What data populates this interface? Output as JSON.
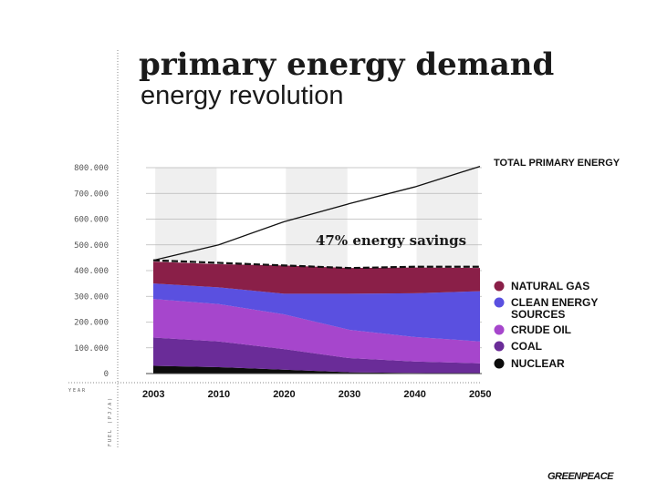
{
  "title": "primary energy demand",
  "subtitle": "energy revolution",
  "brand": "GREENPEACE",
  "axis_captions": {
    "x": "YEAR",
    "y": "FUEL (PJ/A)"
  },
  "colors": {
    "nuclear": "#0c0c0c",
    "coal": "#6a2c98",
    "crude_oil": "#a646cc",
    "clean": "#5a50e0",
    "natural_gas": "#8a1f48",
    "band": "#efefef",
    "grid": "#b8b8b8"
  },
  "chart_data": {
    "type": "area",
    "title": "primary energy demand",
    "subtitle": "energy revolution",
    "x": [
      "2003",
      "2010",
      "2020",
      "2030",
      "2040",
      "2050"
    ],
    "xlabel": "YEAR",
    "ylabel": "FUEL (PJ/A)",
    "ylim": [
      0,
      800000
    ],
    "yticks": [
      "0",
      "100.000",
      "200.000",
      "300.000",
      "400.000",
      "500.000",
      "600.000",
      "700.000",
      "800.000"
    ],
    "grid": true,
    "stacked": true,
    "series": [
      {
        "key": "nuclear",
        "name": "NUCLEAR",
        "values": [
          30000,
          25000,
          15000,
          5000,
          2000,
          0
        ]
      },
      {
        "key": "coal",
        "name": "COAL",
        "values": [
          110000,
          100000,
          80000,
          55000,
          45000,
          40000
        ]
      },
      {
        "key": "crude_oil",
        "name": "CRUDE OIL",
        "values": [
          150000,
          145000,
          135000,
          110000,
          95000,
          85000
        ]
      },
      {
        "key": "clean",
        "name": "CLEAN ENERGY SOURCES",
        "values": [
          60000,
          65000,
          80000,
          140000,
          170000,
          195000
        ]
      },
      {
        "key": "natural_gas",
        "name": "NATURAL GAS",
        "values": [
          85000,
          90000,
          110000,
          100000,
          100000,
          90000
        ]
      }
    ],
    "reference_series": {
      "name": "TOTAL PRIMARY ENERGY",
      "values": [
        440000,
        500000,
        590000,
        660000,
        725000,
        805000
      ]
    },
    "savings_line": {
      "values": [
        440000,
        430000,
        420000,
        410000,
        415000,
        415000
      ]
    },
    "annotations": {
      "total_label": "TOTAL PRIMARY ENERGY",
      "savings_label": "47% energy savings"
    },
    "legend": {
      "position": "right",
      "entries": [
        {
          "key": "natural_gas",
          "label": "NATURAL GAS"
        },
        {
          "key": "clean",
          "label": "CLEAN ENERGY",
          "label2": "SOURCES"
        },
        {
          "key": "crude_oil",
          "label": "CRUDE OIL"
        },
        {
          "key": "coal",
          "label": "COAL"
        },
        {
          "key": "nuclear",
          "label": "NUCLEAR"
        }
      ]
    }
  }
}
